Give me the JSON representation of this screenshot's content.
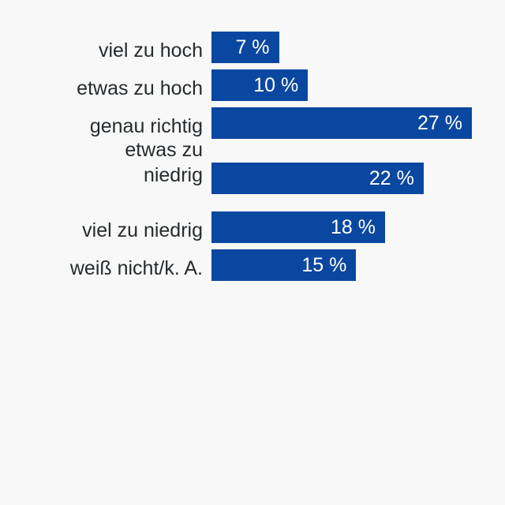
{
  "chart_data": {
    "type": "bar",
    "orientation": "horizontal",
    "categories": [
      "viel zu hoch",
      "etwas zu hoch",
      "genau richtig",
      "etwas zu niedrig",
      "viel zu niedrig",
      "weiß nicht/k. A."
    ],
    "category_lines": [
      [
        "viel zu hoch"
      ],
      [
        "etwas zu hoch"
      ],
      [
        "genau richtig"
      ],
      [
        "etwas zu",
        "niedrig"
      ],
      [
        "viel zu niedrig"
      ],
      [
        "weiß nicht/k. A."
      ]
    ],
    "values": [
      7,
      10,
      27,
      22,
      18,
      15
    ],
    "value_labels": [
      "7 %",
      "10 %",
      "27 %",
      "22 %",
      "18 %",
      "15 %"
    ],
    "unit": "%",
    "color": "#0a47a0",
    "title": "",
    "xlabel": "",
    "ylabel": "",
    "xlim": [
      0,
      27
    ],
    "grid": false
  }
}
